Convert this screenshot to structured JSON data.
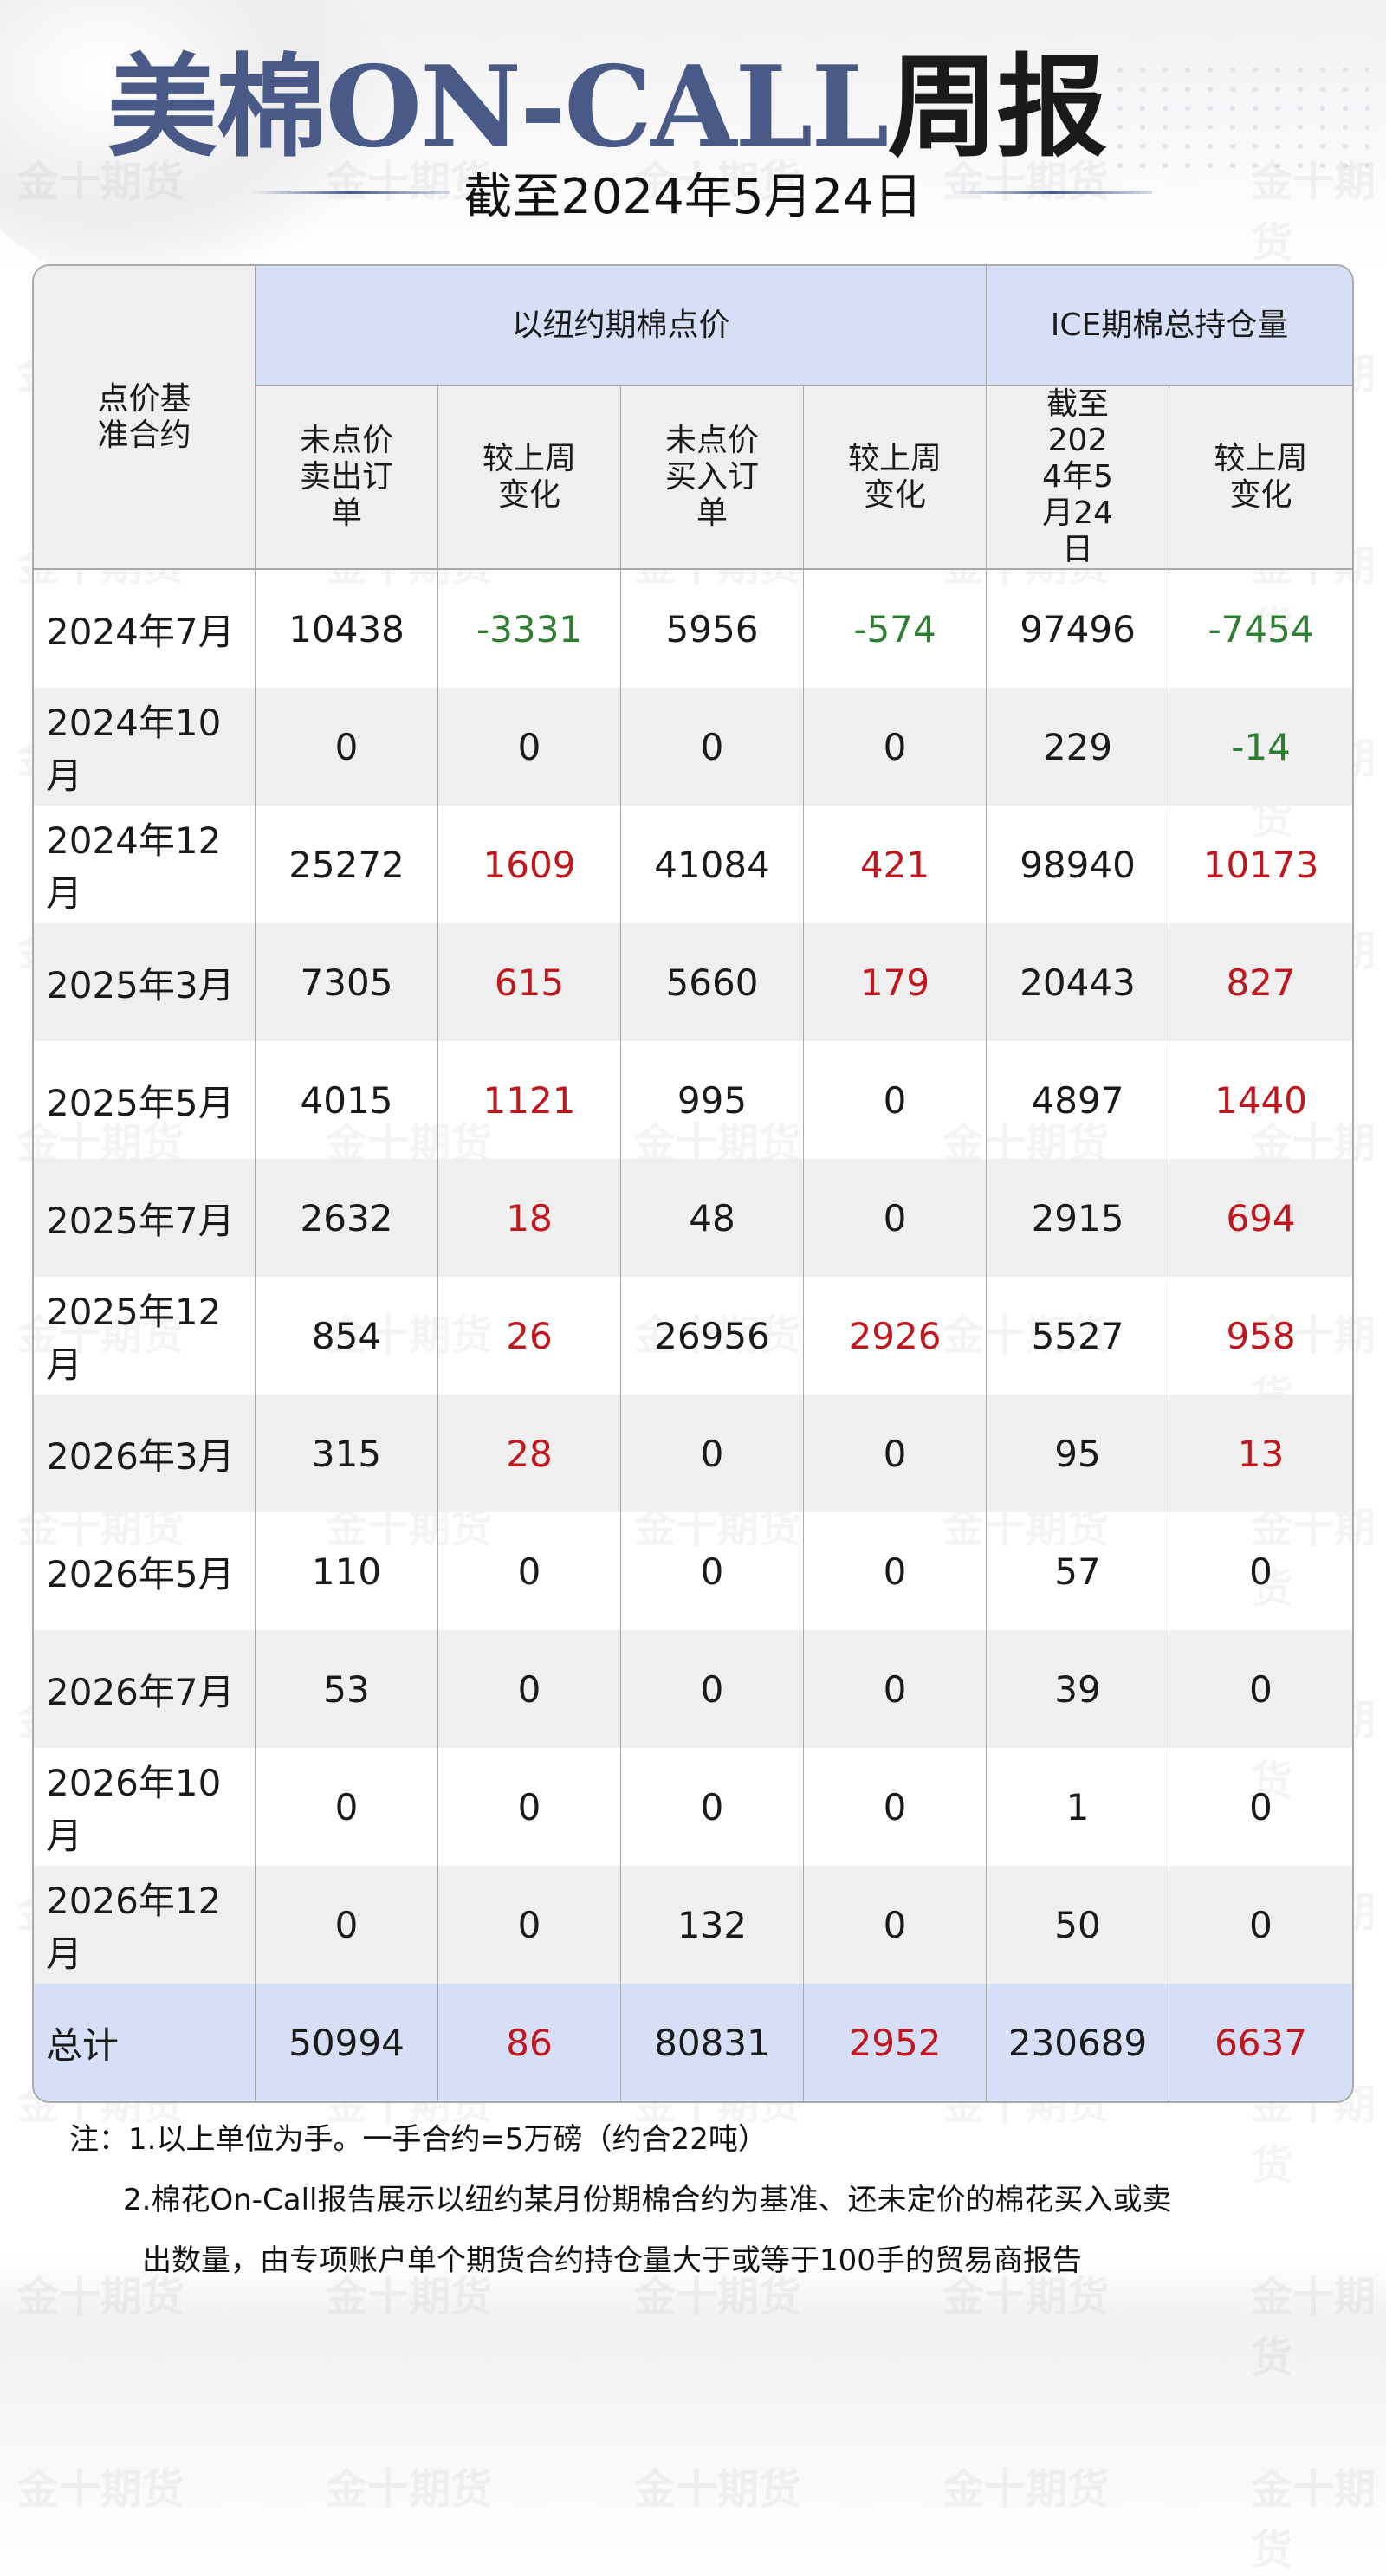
{
  "header": {
    "title_main": "美棉ON-CALL",
    "title_suffix": "周报",
    "subtitle": "截至2024年5月24日"
  },
  "watermark": "金十期货",
  "colors": {
    "positive": "#c0161e",
    "negative": "#2e7d32",
    "header_bg": "#d6dff5",
    "title": "#4a5a88"
  },
  "table": {
    "corner": "点价基准合约",
    "group1": "以纽约期棉点价",
    "group2": "ICE期棉总持仓量",
    "columns": [
      "未点价卖出订单",
      "较上周变化",
      "未点价买入订单",
      "较上周变化",
      "截至2024年5月24日",
      "较上周变化"
    ],
    "rows": [
      [
        "2024年7月",
        "10438",
        "-3331",
        "5956",
        "-574",
        "97496",
        "-7454"
      ],
      [
        "2024年10月",
        "0",
        "0",
        "0",
        "0",
        "229",
        "-14"
      ],
      [
        "2024年12月",
        "25272",
        "1609",
        "41084",
        "421",
        "98940",
        "10173"
      ],
      [
        "2025年3月",
        "7305",
        "615",
        "5660",
        "179",
        "20443",
        "827"
      ],
      [
        "2025年5月",
        "4015",
        "1121",
        "995",
        "0",
        "4897",
        "1440"
      ],
      [
        "2025年7月",
        "2632",
        "18",
        "48",
        "0",
        "2915",
        "694"
      ],
      [
        "2025年12月",
        "854",
        "26",
        "26956",
        "2926",
        "5527",
        "958"
      ],
      [
        "2026年3月",
        "315",
        "28",
        "0",
        "0",
        "95",
        "13"
      ],
      [
        "2026年5月",
        "110",
        "0",
        "0",
        "0",
        "57",
        "0"
      ],
      [
        "2026年7月",
        "53",
        "0",
        "0",
        "0",
        "39",
        "0"
      ],
      [
        "2026年10月",
        "0",
        "0",
        "0",
        "0",
        "1",
        "0"
      ],
      [
        "2026年12月",
        "0",
        "0",
        "132",
        "0",
        "50",
        "0"
      ]
    ],
    "total": [
      "总计",
      "50994",
      "86",
      "80831",
      "2952",
      "230689",
      "6637"
    ]
  },
  "notes": [
    "注：1.以上单位为手。一手合约=5万磅（约合22吨）",
    "2.棉花On-Call报告展示以纽约某月份期棉合约为基准、还未定价的棉花买入或卖",
    "出数量，由专项账户单个期货合约持仓量大于或等于100手的贸易商报告"
  ]
}
